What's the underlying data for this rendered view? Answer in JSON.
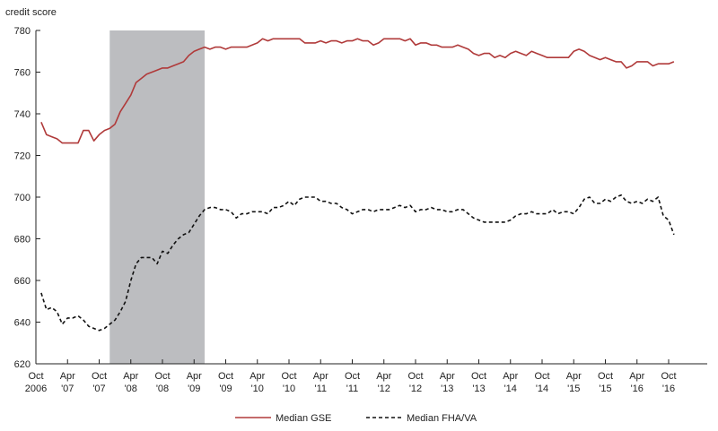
{
  "chart_data": {
    "type": "line",
    "title": "",
    "ylabel": "credit score",
    "xlabel": "",
    "ylim": [
      620,
      780
    ],
    "xlim": [
      "2006-10",
      "2016-12"
    ],
    "grid": false,
    "legend_position": "bottom",
    "y_ticks": [
      "620",
      "640",
      "660",
      "680",
      "700",
      "720",
      "740",
      "760",
      "780"
    ],
    "x_ticks": [
      {
        "date": "2006-10",
        "line1": "Oct",
        "line2": "2006"
      },
      {
        "date": "2007-04",
        "line1": "Apr",
        "line2": "'07"
      },
      {
        "date": "2007-10",
        "line1": "Oct",
        "line2": "'07"
      },
      {
        "date": "2008-04",
        "line1": "Apr",
        "line2": "'08"
      },
      {
        "date": "2008-10",
        "line1": "Oct",
        "line2": "'08"
      },
      {
        "date": "2009-04",
        "line1": "Apr",
        "line2": "'09"
      },
      {
        "date": "2009-10",
        "line1": "Oct",
        "line2": "'09"
      },
      {
        "date": "2010-04",
        "line1": "Apr",
        "line2": "'10"
      },
      {
        "date": "2010-10",
        "line1": "Oct",
        "line2": "'10"
      },
      {
        "date": "2011-04",
        "line1": "Apr",
        "line2": "'11"
      },
      {
        "date": "2011-10",
        "line1": "Oct",
        "line2": "'11"
      },
      {
        "date": "2012-04",
        "line1": "Apr",
        "line2": "'12"
      },
      {
        "date": "2012-10",
        "line1": "Oct",
        "line2": "'12"
      },
      {
        "date": "2013-04",
        "line1": "Apr",
        "line2": "'13"
      },
      {
        "date": "2013-10",
        "line1": "Oct",
        "line2": "'13"
      },
      {
        "date": "2014-04",
        "line1": "Apr",
        "line2": "'14"
      },
      {
        "date": "2014-10",
        "line1": "Oct",
        "line2": "'14"
      },
      {
        "date": "2015-04",
        "line1": "Apr",
        "line2": "'15"
      },
      {
        "date": "2015-10",
        "line1": "Oct",
        "line2": "'15"
      },
      {
        "date": "2016-04",
        "line1": "Apr",
        "line2": "'16"
      },
      {
        "date": "2016-10",
        "line1": "Oct",
        "line2": "'16"
      }
    ],
    "shaded_region": {
      "start": "2007-12",
      "end": "2009-06",
      "color": "#bcbdc0"
    },
    "series": [
      {
        "name": "Median GSE",
        "color": "#b03a3a",
        "dash": "solid",
        "points": [
          [
            "2006-11",
            736
          ],
          [
            "2006-12",
            730
          ],
          [
            "2007-01",
            729
          ],
          [
            "2007-02",
            728
          ],
          [
            "2007-03",
            726
          ],
          [
            "2007-04",
            726
          ],
          [
            "2007-05",
            726
          ],
          [
            "2007-06",
            726
          ],
          [
            "2007-07",
            732
          ],
          [
            "2007-08",
            732
          ],
          [
            "2007-09",
            727
          ],
          [
            "2007-10",
            730
          ],
          [
            "2007-11",
            732
          ],
          [
            "2007-12",
            733
          ],
          [
            "2008-01",
            735
          ],
          [
            "2008-02",
            741
          ],
          [
            "2008-03",
            745
          ],
          [
            "2008-04",
            749
          ],
          [
            "2008-05",
            755
          ],
          [
            "2008-06",
            757
          ],
          [
            "2008-07",
            759
          ],
          [
            "2008-08",
            760
          ],
          [
            "2008-09",
            761
          ],
          [
            "2008-10",
            762
          ],
          [
            "2008-11",
            762
          ],
          [
            "2008-12",
            763
          ],
          [
            "2009-01",
            764
          ],
          [
            "2009-02",
            765
          ],
          [
            "2009-03",
            768
          ],
          [
            "2009-04",
            770
          ],
          [
            "2009-05",
            771
          ],
          [
            "2009-06",
            772
          ],
          [
            "2009-07",
            771
          ],
          [
            "2009-08",
            772
          ],
          [
            "2009-09",
            772
          ],
          [
            "2009-10",
            771
          ],
          [
            "2009-11",
            772
          ],
          [
            "2009-12",
            772
          ],
          [
            "2010-01",
            772
          ],
          [
            "2010-02",
            772
          ],
          [
            "2010-03",
            773
          ],
          [
            "2010-04",
            774
          ],
          [
            "2010-05",
            776
          ],
          [
            "2010-06",
            775
          ],
          [
            "2010-07",
            776
          ],
          [
            "2010-08",
            776
          ],
          [
            "2010-09",
            776
          ],
          [
            "2010-10",
            776
          ],
          [
            "2010-11",
            776
          ],
          [
            "2010-12",
            776
          ],
          [
            "2011-01",
            774
          ],
          [
            "2011-02",
            774
          ],
          [
            "2011-03",
            774
          ],
          [
            "2011-04",
            775
          ],
          [
            "2011-05",
            774
          ],
          [
            "2011-06",
            775
          ],
          [
            "2011-07",
            775
          ],
          [
            "2011-08",
            774
          ],
          [
            "2011-09",
            775
          ],
          [
            "2011-10",
            775
          ],
          [
            "2011-11",
            776
          ],
          [
            "2011-12",
            775
          ],
          [
            "2012-01",
            775
          ],
          [
            "2012-02",
            773
          ],
          [
            "2012-03",
            774
          ],
          [
            "2012-04",
            776
          ],
          [
            "2012-05",
            776
          ],
          [
            "2012-06",
            776
          ],
          [
            "2012-07",
            776
          ],
          [
            "2012-08",
            775
          ],
          [
            "2012-09",
            776
          ],
          [
            "2012-10",
            773
          ],
          [
            "2012-11",
            774
          ],
          [
            "2012-12",
            774
          ],
          [
            "2013-01",
            773
          ],
          [
            "2013-02",
            773
          ],
          [
            "2013-03",
            772
          ],
          [
            "2013-04",
            772
          ],
          [
            "2013-05",
            772
          ],
          [
            "2013-06",
            773
          ],
          [
            "2013-07",
            772
          ],
          [
            "2013-08",
            771
          ],
          [
            "2013-09",
            769
          ],
          [
            "2013-10",
            768
          ],
          [
            "2013-11",
            769
          ],
          [
            "2013-12",
            769
          ],
          [
            "2014-01",
            767
          ],
          [
            "2014-02",
            768
          ],
          [
            "2014-03",
            767
          ],
          [
            "2014-04",
            769
          ],
          [
            "2014-05",
            770
          ],
          [
            "2014-06",
            769
          ],
          [
            "2014-07",
            768
          ],
          [
            "2014-08",
            770
          ],
          [
            "2014-09",
            769
          ],
          [
            "2014-10",
            768
          ],
          [
            "2014-11",
            767
          ],
          [
            "2014-12",
            767
          ],
          [
            "2015-01",
            767
          ],
          [
            "2015-02",
            767
          ],
          [
            "2015-03",
            767
          ],
          [
            "2015-04",
            770
          ],
          [
            "2015-05",
            771
          ],
          [
            "2015-06",
            770
          ],
          [
            "2015-07",
            768
          ],
          [
            "2015-08",
            767
          ],
          [
            "2015-09",
            766
          ],
          [
            "2015-10",
            767
          ],
          [
            "2015-11",
            766
          ],
          [
            "2015-12",
            765
          ],
          [
            "2016-01",
            765
          ],
          [
            "2016-02",
            762
          ],
          [
            "2016-03",
            763
          ],
          [
            "2016-04",
            765
          ],
          [
            "2016-05",
            765
          ],
          [
            "2016-06",
            765
          ],
          [
            "2016-07",
            763
          ],
          [
            "2016-08",
            764
          ],
          [
            "2016-09",
            764
          ],
          [
            "2016-10",
            764
          ],
          [
            "2016-11",
            765
          ]
        ]
      },
      {
        "name": "Median FHA/VA",
        "color": "#111111",
        "dash": "dashed",
        "points": [
          [
            "2006-11",
            654
          ],
          [
            "2006-12",
            646
          ],
          [
            "2007-01",
            647
          ],
          [
            "2007-02",
            645
          ],
          [
            "2007-03",
            639
          ],
          [
            "2007-04",
            642
          ],
          [
            "2007-05",
            642
          ],
          [
            "2007-06",
            643
          ],
          [
            "2007-07",
            641
          ],
          [
            "2007-08",
            638
          ],
          [
            "2007-09",
            637
          ],
          [
            "2007-10",
            636
          ],
          [
            "2007-11",
            637
          ],
          [
            "2007-12",
            639
          ],
          [
            "2008-01",
            641
          ],
          [
            "2008-02",
            645
          ],
          [
            "2008-03",
            650
          ],
          [
            "2008-04",
            660
          ],
          [
            "2008-05",
            668
          ],
          [
            "2008-06",
            671
          ],
          [
            "2008-07",
            671
          ],
          [
            "2008-08",
            671
          ],
          [
            "2008-09",
            668
          ],
          [
            "2008-10",
            674
          ],
          [
            "2008-11",
            673
          ],
          [
            "2008-12",
            677
          ],
          [
            "2009-01",
            680
          ],
          [
            "2009-02",
            682
          ],
          [
            "2009-03",
            683
          ],
          [
            "2009-04",
            687
          ],
          [
            "2009-05",
            691
          ],
          [
            "2009-06",
            694
          ],
          [
            "2009-07",
            695
          ],
          [
            "2009-08",
            695
          ],
          [
            "2009-09",
            694
          ],
          [
            "2009-10",
            694
          ],
          [
            "2009-11",
            693
          ],
          [
            "2009-12",
            690
          ],
          [
            "2010-01",
            692
          ],
          [
            "2010-02",
            692
          ],
          [
            "2010-03",
            693
          ],
          [
            "2010-04",
            693
          ],
          [
            "2010-05",
            693
          ],
          [
            "2010-06",
            692
          ],
          [
            "2010-07",
            695
          ],
          [
            "2010-08",
            695
          ],
          [
            "2010-09",
            696
          ],
          [
            "2010-10",
            698
          ],
          [
            "2010-11",
            696
          ],
          [
            "2010-12",
            699
          ],
          [
            "2011-01",
            700
          ],
          [
            "2011-02",
            700
          ],
          [
            "2011-03",
            700
          ],
          [
            "2011-04",
            698
          ],
          [
            "2011-05",
            698
          ],
          [
            "2011-06",
            697
          ],
          [
            "2011-07",
            697
          ],
          [
            "2011-08",
            695
          ],
          [
            "2011-09",
            694
          ],
          [
            "2011-10",
            692
          ],
          [
            "2011-11",
            693
          ],
          [
            "2011-12",
            694
          ],
          [
            "2012-01",
            694
          ],
          [
            "2012-02",
            693
          ],
          [
            "2012-03",
            694
          ],
          [
            "2012-04",
            694
          ],
          [
            "2012-05",
            694
          ],
          [
            "2012-06",
            695
          ],
          [
            "2012-07",
            696
          ],
          [
            "2012-08",
            695
          ],
          [
            "2012-09",
            696
          ],
          [
            "2012-10",
            693
          ],
          [
            "2012-11",
            694
          ],
          [
            "2012-12",
            694
          ],
          [
            "2013-01",
            695
          ],
          [
            "2013-02",
            694
          ],
          [
            "2013-03",
            694
          ],
          [
            "2013-04",
            693
          ],
          [
            "2013-05",
            693
          ],
          [
            "2013-06",
            694
          ],
          [
            "2013-07",
            694
          ],
          [
            "2013-08",
            692
          ],
          [
            "2013-09",
            690
          ],
          [
            "2013-10",
            689
          ],
          [
            "2013-11",
            688
          ],
          [
            "2013-12",
            688
          ],
          [
            "2014-01",
            688
          ],
          [
            "2014-02",
            688
          ],
          [
            "2014-03",
            688
          ],
          [
            "2014-04",
            689
          ],
          [
            "2014-05",
            691
          ],
          [
            "2014-06",
            692
          ],
          [
            "2014-07",
            692
          ],
          [
            "2014-08",
            693
          ],
          [
            "2014-09",
            692
          ],
          [
            "2014-10",
            692
          ],
          [
            "2014-11",
            692
          ],
          [
            "2014-12",
            694
          ],
          [
            "2015-01",
            692
          ],
          [
            "2015-02",
            693
          ],
          [
            "2015-03",
            693
          ],
          [
            "2015-04",
            692
          ],
          [
            "2015-05",
            695
          ],
          [
            "2015-06",
            699
          ],
          [
            "2015-07",
            700
          ],
          [
            "2015-08",
            697
          ],
          [
            "2015-09",
            697
          ],
          [
            "2015-10",
            699
          ],
          [
            "2015-11",
            698
          ],
          [
            "2015-12",
            700
          ],
          [
            "2016-01",
            701
          ],
          [
            "2016-02",
            698
          ],
          [
            "2016-03",
            697
          ],
          [
            "2016-04",
            698
          ],
          [
            "2016-05",
            697
          ],
          [
            "2016-06",
            699
          ],
          [
            "2016-07",
            698
          ],
          [
            "2016-08",
            700
          ],
          [
            "2016-09",
            691
          ],
          [
            "2016-10",
            689
          ],
          [
            "2016-11",
            682
          ]
        ]
      }
    ]
  }
}
